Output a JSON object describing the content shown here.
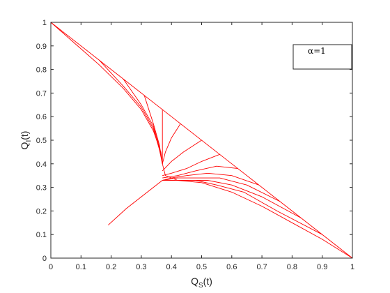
{
  "chart_data": {
    "type": "line",
    "title": "",
    "xlabel": {
      "main": "Q",
      "sub": "S",
      "suffix": "(t)"
    },
    "ylabel": {
      "main": "Q",
      "sub": "I",
      "suffix": "(t)"
    },
    "xlim": [
      0,
      1
    ],
    "ylim": [
      0,
      1
    ],
    "xticks": [
      "0",
      "0.1",
      "0.2",
      "0.3",
      "0.4",
      "0.5",
      "0.6",
      "0.7",
      "0.8",
      "0.9",
      "1"
    ],
    "yticks": [
      "0",
      "0.1",
      "0.2",
      "0.3",
      "0.4",
      "0.5",
      "0.6",
      "0.7",
      "0.8",
      "0.9",
      "1"
    ],
    "grid": false,
    "legend": {
      "position": "top-right",
      "label": "α=1"
    },
    "line_color": "#ff0000",
    "series": [
      {
        "x": [
          0,
          0.2,
          0.4,
          0.6,
          0.8,
          1.0
        ],
        "y": [
          1,
          0.8,
          0.6,
          0.4,
          0.2,
          0
        ]
      },
      {
        "x": [
          0.19,
          0.25,
          0.3,
          0.34,
          0.37
        ],
        "y": [
          0.14,
          0.21,
          0.26,
          0.3,
          0.33
        ]
      },
      {
        "x": [
          0,
          0.08,
          0.16,
          0.24,
          0.3,
          0.34,
          0.365,
          0.37,
          0.38,
          0.42,
          0.5,
          0.6,
          0.7,
          0.8,
          0.9,
          1.0
        ],
        "y": [
          1,
          0.91,
          0.82,
          0.72,
          0.63,
          0.54,
          0.45,
          0.4,
          0.35,
          0.33,
          0.32,
          0.28,
          0.22,
          0.15,
          0.08,
          0
        ]
      },
      {
        "x": [
          0.16,
          0.24,
          0.3,
          0.34,
          0.36,
          0.37
        ],
        "y": [
          0.84,
          0.73,
          0.64,
          0.55,
          0.46,
          0.4
        ]
      },
      {
        "x": [
          0.24,
          0.3,
          0.34,
          0.36,
          0.37
        ],
        "y": [
          0.76,
          0.65,
          0.56,
          0.47,
          0.4
        ]
      },
      {
        "x": [
          0.31,
          0.34,
          0.36,
          0.37
        ],
        "y": [
          0.69,
          0.57,
          0.48,
          0.4
        ]
      },
      {
        "x": [
          0.37,
          0.37,
          0.37
        ],
        "y": [
          0.63,
          0.5,
          0.4
        ]
      },
      {
        "x": [
          0.43,
          0.4,
          0.38,
          0.37
        ],
        "y": [
          0.57,
          0.51,
          0.45,
          0.4
        ]
      },
      {
        "x": [
          0.5,
          0.44,
          0.4,
          0.37
        ],
        "y": [
          0.5,
          0.45,
          0.41,
          0.37
        ]
      },
      {
        "x": [
          0.56,
          0.5,
          0.45,
          0.4,
          0.37
        ],
        "y": [
          0.44,
          0.41,
          0.38,
          0.36,
          0.35
        ]
      },
      {
        "x": [
          0.62,
          0.55,
          0.48,
          0.42,
          0.37
        ],
        "y": [
          0.38,
          0.39,
          0.37,
          0.35,
          0.34
        ]
      },
      {
        "x": [
          0.69,
          0.6,
          0.52,
          0.45,
          0.4,
          0.37
        ],
        "y": [
          0.31,
          0.35,
          0.36,
          0.35,
          0.34,
          0.33
        ]
      },
      {
        "x": [
          0.76,
          0.65,
          0.56,
          0.48,
          0.42,
          0.37
        ],
        "y": [
          0.24,
          0.31,
          0.34,
          0.34,
          0.34,
          0.33
        ]
      },
      {
        "x": [
          0.83,
          0.7,
          0.6,
          0.52,
          0.45,
          0.4,
          0.37
        ],
        "y": [
          0.17,
          0.26,
          0.31,
          0.33,
          0.33,
          0.33,
          0.33
        ]
      },
      {
        "x": [
          0.9,
          0.75,
          0.64,
          0.55,
          0.48,
          0.42,
          0.37
        ],
        "y": [
          0.1,
          0.2,
          0.28,
          0.31,
          0.33,
          0.33,
          0.33
        ]
      }
    ]
  }
}
